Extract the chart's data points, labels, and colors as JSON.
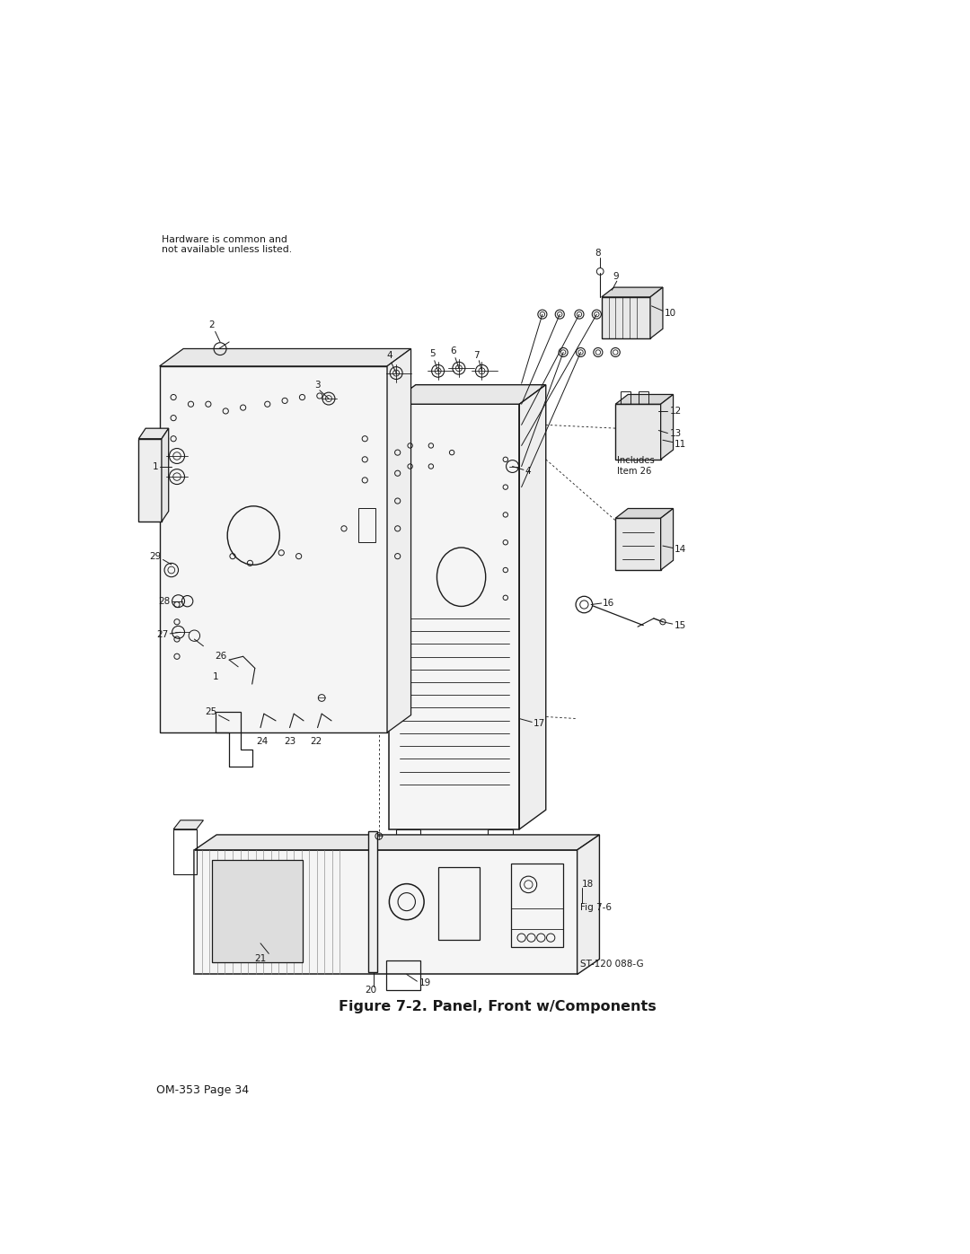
{
  "title": "Figure 7-2. Panel, Front w/Components",
  "page_label": "OM-353 Page 34",
  "ref_label": "ST-120 088-G",
  "header_note": "Hardware is common and\nnot available unless listed.",
  "bg_color": "#ffffff",
  "lc": "#1a1a1a",
  "tc": "#1a1a1a",
  "fig_width": 10.8,
  "fig_height": 13.97,
  "dpi": 100,
  "includes_text": "Includes\nItem 26",
  "fig7_6_text": "Fig 7-6"
}
